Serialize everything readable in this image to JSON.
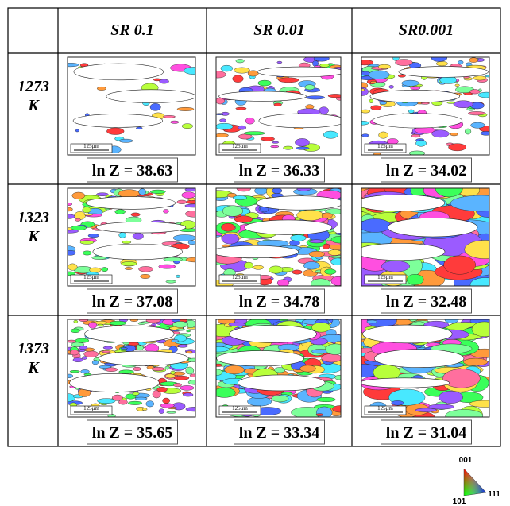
{
  "table": {
    "headers": [
      "SR 0.1",
      "SR 0.01",
      "SR0.001"
    ],
    "rows": [
      {
        "temperature": [
          "1273",
          "K"
        ],
        "cells": [
          {
            "label": "ln Z = 38.63",
            "scale": "125μm"
          },
          {
            "label": "ln Z = 36.33",
            "scale": "125μm"
          },
          {
            "label": "ln Z = 34.02",
            "scale": "125μm"
          }
        ]
      },
      {
        "temperature": [
          "1323",
          "K"
        ],
        "cells": [
          {
            "label": "ln Z = 37.08",
            "scale": "125μm"
          },
          {
            "label": "ln Z = 34.78",
            "scale": "125μm"
          },
          {
            "label": "ln Z = 32.48",
            "scale": "125μm"
          }
        ]
      },
      {
        "temperature": [
          "1373",
          "K"
        ],
        "cells": [
          {
            "label": "ln Z = 35.65",
            "scale": "125μm"
          },
          {
            "label": "ln Z = 33.34",
            "scale": "125μm"
          },
          {
            "label": "ln Z = 31.04",
            "scale": "125μm"
          }
        ]
      }
    ]
  },
  "legend": {
    "labels": [
      "001",
      "101",
      "111"
    ]
  }
}
